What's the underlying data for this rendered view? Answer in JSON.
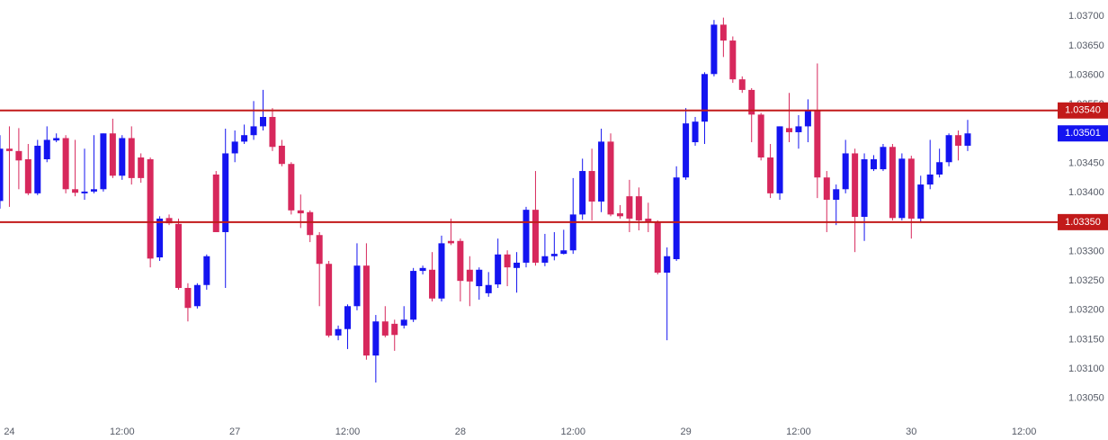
{
  "chart_data": {
    "type": "candlestick",
    "up_color": "#1414f0",
    "down_color": "#d7285c",
    "level_color": "#c21a1a",
    "last_color": "#1414f0",
    "xlim": [
      0,
      112
    ],
    "ylim": [
      1.03016,
      1.03728
    ],
    "xticks": [
      {
        "value": 1,
        "label": "24"
      },
      {
        "value": 13,
        "label": "12:00"
      },
      {
        "value": 25,
        "label": "27"
      },
      {
        "value": 37,
        "label": "12:00"
      },
      {
        "value": 49,
        "label": "28"
      },
      {
        "value": 61,
        "label": "12:00"
      },
      {
        "value": 73,
        "label": "29"
      },
      {
        "value": 85,
        "label": "12:00"
      },
      {
        "value": 97,
        "label": "30"
      },
      {
        "value": 109,
        "label": "12:00"
      }
    ],
    "yticks": [
      {
        "value": 1.037,
        "label": "1.03700"
      },
      {
        "value": 1.0365,
        "label": "1.03650"
      },
      {
        "value": 1.036,
        "label": "1.03600"
      },
      {
        "value": 1.0355,
        "label": "1.03550"
      },
      {
        "value": 1.035,
        "label": "1.03500"
      },
      {
        "value": 1.0345,
        "label": "1.03450"
      },
      {
        "value": 1.034,
        "label": "1.03400"
      },
      {
        "value": 1.0335,
        "label": "1.03350"
      },
      {
        "value": 1.033,
        "label": "1.03300"
      },
      {
        "value": 1.0325,
        "label": "1.03250"
      },
      {
        "value": 1.032,
        "label": "1.03200"
      },
      {
        "value": 1.0315,
        "label": "1.03150"
      },
      {
        "value": 1.031,
        "label": "1.03100"
      },
      {
        "value": 1.0305,
        "label": "1.03050"
      }
    ],
    "levels": [
      {
        "value": 1.0354,
        "label": "1.03540"
      },
      {
        "value": 1.0335,
        "label": "1.03350"
      }
    ],
    "last_price": {
      "value": 1.03501,
      "label": "1.03501"
    },
    "open": [
      1.03386,
      1.03475,
      1.03471,
      1.03457,
      1.03399,
      1.03457,
      1.03489,
      1.03493,
      1.03406,
      1.03399,
      1.03402,
      1.03406,
      1.03501,
      1.03429,
      1.03493,
      1.0346,
      1.03457,
      1.0329,
      1.03357,
      1.03347,
      1.03238,
      1.03207,
      1.03243,
      1.03431,
      1.03333,
      1.03467,
      1.03487,
      1.03498,
      1.03513,
      1.03529,
      1.0348,
      1.03449,
      1.0337,
      1.03367,
      1.03328,
      1.03279,
      1.03157,
      1.03168,
      1.03207,
      1.03276,
      1.03123,
      1.03181,
      1.03177,
      1.03174,
      1.03184,
      1.03267,
      1.03269,
      1.0322,
      1.03318,
      1.03318,
      1.03269,
      1.03241,
      1.03229,
      1.03244,
      1.03295,
      1.03272,
      1.03281,
      1.03371,
      1.03281,
      1.03292,
      1.03296,
      1.03302,
      1.03363,
      1.03437,
      1.03385,
      1.03487,
      1.03365,
      1.03394,
      1.03394,
      1.03356,
      1.03351,
      1.03264,
      1.03287,
      1.03426,
      1.03486,
      1.03521,
      1.03602,
      1.03686,
      1.03659,
      1.03593,
      1.03575,
      1.03533,
      1.0346,
      1.03399,
      1.0351,
      1.03503,
      1.03513,
      1.03539,
      1.03426,
      1.03388,
      1.03406,
      1.03467,
      1.03359,
      1.0344,
      1.0344,
      1.03478,
      1.03357,
      1.03458,
      1.03356,
      1.03414,
      1.03431,
      1.03452,
      1.03498,
      1.0348
    ],
    "high": [
      1.03498,
      1.03513,
      1.0351,
      1.03483,
      1.0349,
      1.03513,
      1.03501,
      1.03498,
      1.0349,
      1.03475,
      1.03498,
      1.03501,
      1.03526,
      1.03498,
      1.03513,
      1.03467,
      1.0346,
      1.0336,
      1.03363,
      1.03356,
      1.03246,
      1.03246,
      1.03295,
      1.03437,
      1.03509,
      1.03506,
      1.03516,
      1.03556,
      1.03575,
      1.03544,
      1.0349,
      1.03452,
      1.03397,
      1.0337,
      1.03333,
      1.03284,
      1.03174,
      1.0321,
      1.03314,
      1.03314,
      1.03192,
      1.03207,
      1.03184,
      1.03207,
      1.03272,
      1.03276,
      1.03299,
      1.03327,
      1.03356,
      1.03322,
      1.03292,
      1.03273,
      1.03265,
      1.03322,
      1.03302,
      1.03299,
      1.03376,
      1.03437,
      1.0333,
      1.03333,
      1.03337,
      1.03425,
      1.03458,
      1.03475,
      1.03509,
      1.03501,
      1.03379,
      1.03422,
      1.03409,
      1.03383,
      1.03353,
      1.03307,
      1.03445,
      1.03544,
      1.03529,
      1.03605,
      1.03694,
      1.03698,
      1.03666,
      1.03598,
      1.03578,
      1.03536,
      1.03483,
      1.03513,
      1.0357,
      1.03532,
      1.03559,
      1.0362,
      1.03437,
      1.03414,
      1.0349,
      1.03475,
      1.03467,
      1.03464,
      1.03483,
      1.03483,
      1.03467,
      1.03463,
      1.03429,
      1.0349,
      1.03475,
      1.03501,
      1.03506,
      1.03524
    ],
    "low": [
      1.03373,
      1.03376,
      1.03406,
      1.03396,
      1.03396,
      1.03452,
      1.03486,
      1.03399,
      1.03394,
      1.03388,
      1.03399,
      1.03402,
      1.03425,
      1.03422,
      1.03414,
      1.03417,
      1.03273,
      1.03284,
      1.03345,
      1.03235,
      1.03181,
      1.03203,
      1.03235,
      1.03333,
      1.03238,
      1.03452,
      1.03483,
      1.0349,
      1.03506,
      1.03471,
      1.03445,
      1.03363,
      1.0334,
      1.03316,
      1.03207,
      1.03154,
      1.03149,
      1.03134,
      1.032,
      1.03116,
      1.03077,
      1.03154,
      1.03131,
      1.03169,
      1.0318,
      1.03261,
      1.03215,
      1.03215,
      1.03311,
      1.03215,
      1.03207,
      1.03218,
      1.03223,
      1.03238,
      1.03241,
      1.0323,
      1.03273,
      1.03276,
      1.03275,
      1.03285,
      1.03295,
      1.03296,
      1.03354,
      1.03353,
      1.03367,
      1.0336,
      1.03356,
      1.03333,
      1.03336,
      1.03333,
      1.03261,
      1.03149,
      1.03284,
      1.03422,
      1.0348,
      1.03483,
      1.03598,
      1.03631,
      1.03587,
      1.0357,
      1.03486,
      1.03455,
      1.03391,
      1.03388,
      1.03486,
      1.03475,
      1.03486,
      1.03391,
      1.03333,
      1.03345,
      1.03399,
      1.03299,
      1.03318,
      1.03437,
      1.03437,
      1.03353,
      1.03353,
      1.03322,
      1.03351,
      1.03406,
      1.03426,
      1.03445,
      1.03455,
      1.03471
    ],
    "close": [
      1.03475,
      1.03471,
      1.03455,
      1.03399,
      1.0348,
      1.0349,
      1.03493,
      1.03406,
      1.034,
      1.03402,
      1.03406,
      1.03501,
      1.03429,
      1.03493,
      1.03425,
      1.03425,
      1.03288,
      1.03356,
      1.03348,
      1.03238,
      1.03204,
      1.03243,
      1.03292,
      1.03333,
      1.03467,
      1.03487,
      1.03498,
      1.03513,
      1.03529,
      1.03478,
      1.03449,
      1.0337,
      1.03365,
      1.03328,
      1.03279,
      1.03157,
      1.03168,
      1.03207,
      1.03276,
      1.03123,
      1.03181,
      1.03157,
      1.03158,
      1.03184,
      1.03267,
      1.03272,
      1.0322,
      1.03314,
      1.03314,
      1.0325,
      1.03249,
      1.03269,
      1.03243,
      1.03295,
      1.03273,
      1.03281,
      1.03371,
      1.03281,
      1.03292,
      1.03296,
      1.03302,
      1.03363,
      1.03437,
      1.03385,
      1.03487,
      1.03363,
      1.0336,
      1.03356,
      1.03353,
      1.03351,
      1.03264,
      1.03292,
      1.03426,
      1.03518,
      1.03521,
      1.03602,
      1.03686,
      1.03659,
      1.03593,
      1.03575,
      1.03533,
      1.0346,
      1.03399,
      1.03513,
      1.03503,
      1.03513,
      1.03539,
      1.03426,
      1.03388,
      1.03406,
      1.03467,
      1.03359,
      1.03457,
      1.03457,
      1.03478,
      1.03357,
      1.03458,
      1.03356,
      1.03414,
      1.03431,
      1.03452,
      1.03498,
      1.0348,
      1.03501
    ]
  }
}
